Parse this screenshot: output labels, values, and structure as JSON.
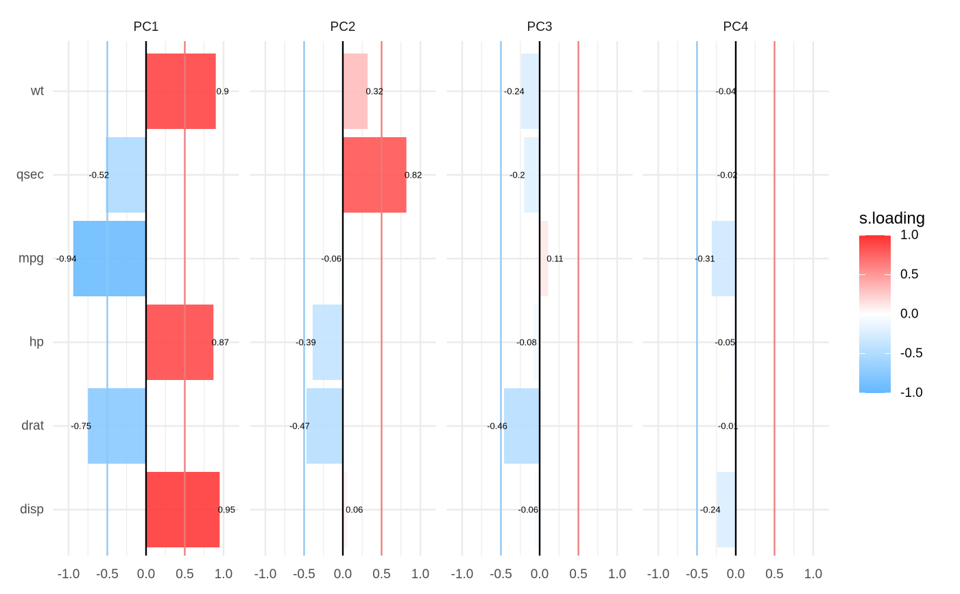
{
  "chart_data": {
    "type": "bar",
    "orientation": "horizontal",
    "facet": "PC",
    "panels": [
      "PC1",
      "PC2",
      "PC3",
      "PC4"
    ],
    "categories": [
      "wt",
      "qsec",
      "mpg",
      "hp",
      "drat",
      "disp"
    ],
    "series": [
      {
        "name": "PC1",
        "values": [
          0.9,
          -0.52,
          -0.94,
          0.87,
          -0.75,
          0.95
        ],
        "labels": [
          "0.9",
          "-0.52",
          "-0.94",
          "0.87",
          "-0.75",
          "0.95"
        ]
      },
      {
        "name": "PC2",
        "values": [
          0.32,
          0.82,
          -0.06,
          -0.39,
          -0.47,
          0.06
        ],
        "labels": [
          "0.32",
          "0.82",
          "-0.06",
          "-0.39",
          "-0.47",
          "0.06"
        ]
      },
      {
        "name": "PC3",
        "values": [
          -0.24,
          -0.2,
          0.11,
          -0.08,
          -0.46,
          -0.06
        ],
        "labels": [
          "-0.24",
          "-0.2",
          "0.11",
          "-0.08",
          "-0.46",
          "-0.06"
        ]
      },
      {
        "name": "PC4",
        "values": [
          -0.04,
          -0.02,
          -0.31,
          -0.05,
          -0.01,
          -0.24
        ],
        "labels": [
          "-0.04",
          "-0.02",
          "-0.31",
          "-0.05",
          "-0.01",
          "-0.24"
        ]
      }
    ],
    "xlim": [
      -1.2,
      1.2
    ],
    "xticks": [
      -1.0,
      -0.5,
      0.0,
      0.5,
      1.0
    ],
    "xtick_labels": [
      "-1.0",
      "-0.5",
      "0.0",
      "0.5",
      "1.0"
    ],
    "reference_lines": [
      {
        "x": -0.5,
        "color": "#8EC7F5"
      },
      {
        "x": 0.0,
        "color": "#000000"
      },
      {
        "x": 0.5,
        "color": "#F07A7A"
      }
    ],
    "grid": true,
    "xlabel": "",
    "ylabel": "",
    "legend": {
      "title": "s.loading",
      "position": "right",
      "type": "colorbar",
      "range": [
        -1.0,
        1.0
      ],
      "ticks": [
        "1.0",
        "0.5",
        "0.0",
        "-0.5",
        "-1.0"
      ],
      "colors": {
        "low": "#63B8FF",
        "mid": "#FFFFFF",
        "high": "#FF3030"
      }
    }
  }
}
